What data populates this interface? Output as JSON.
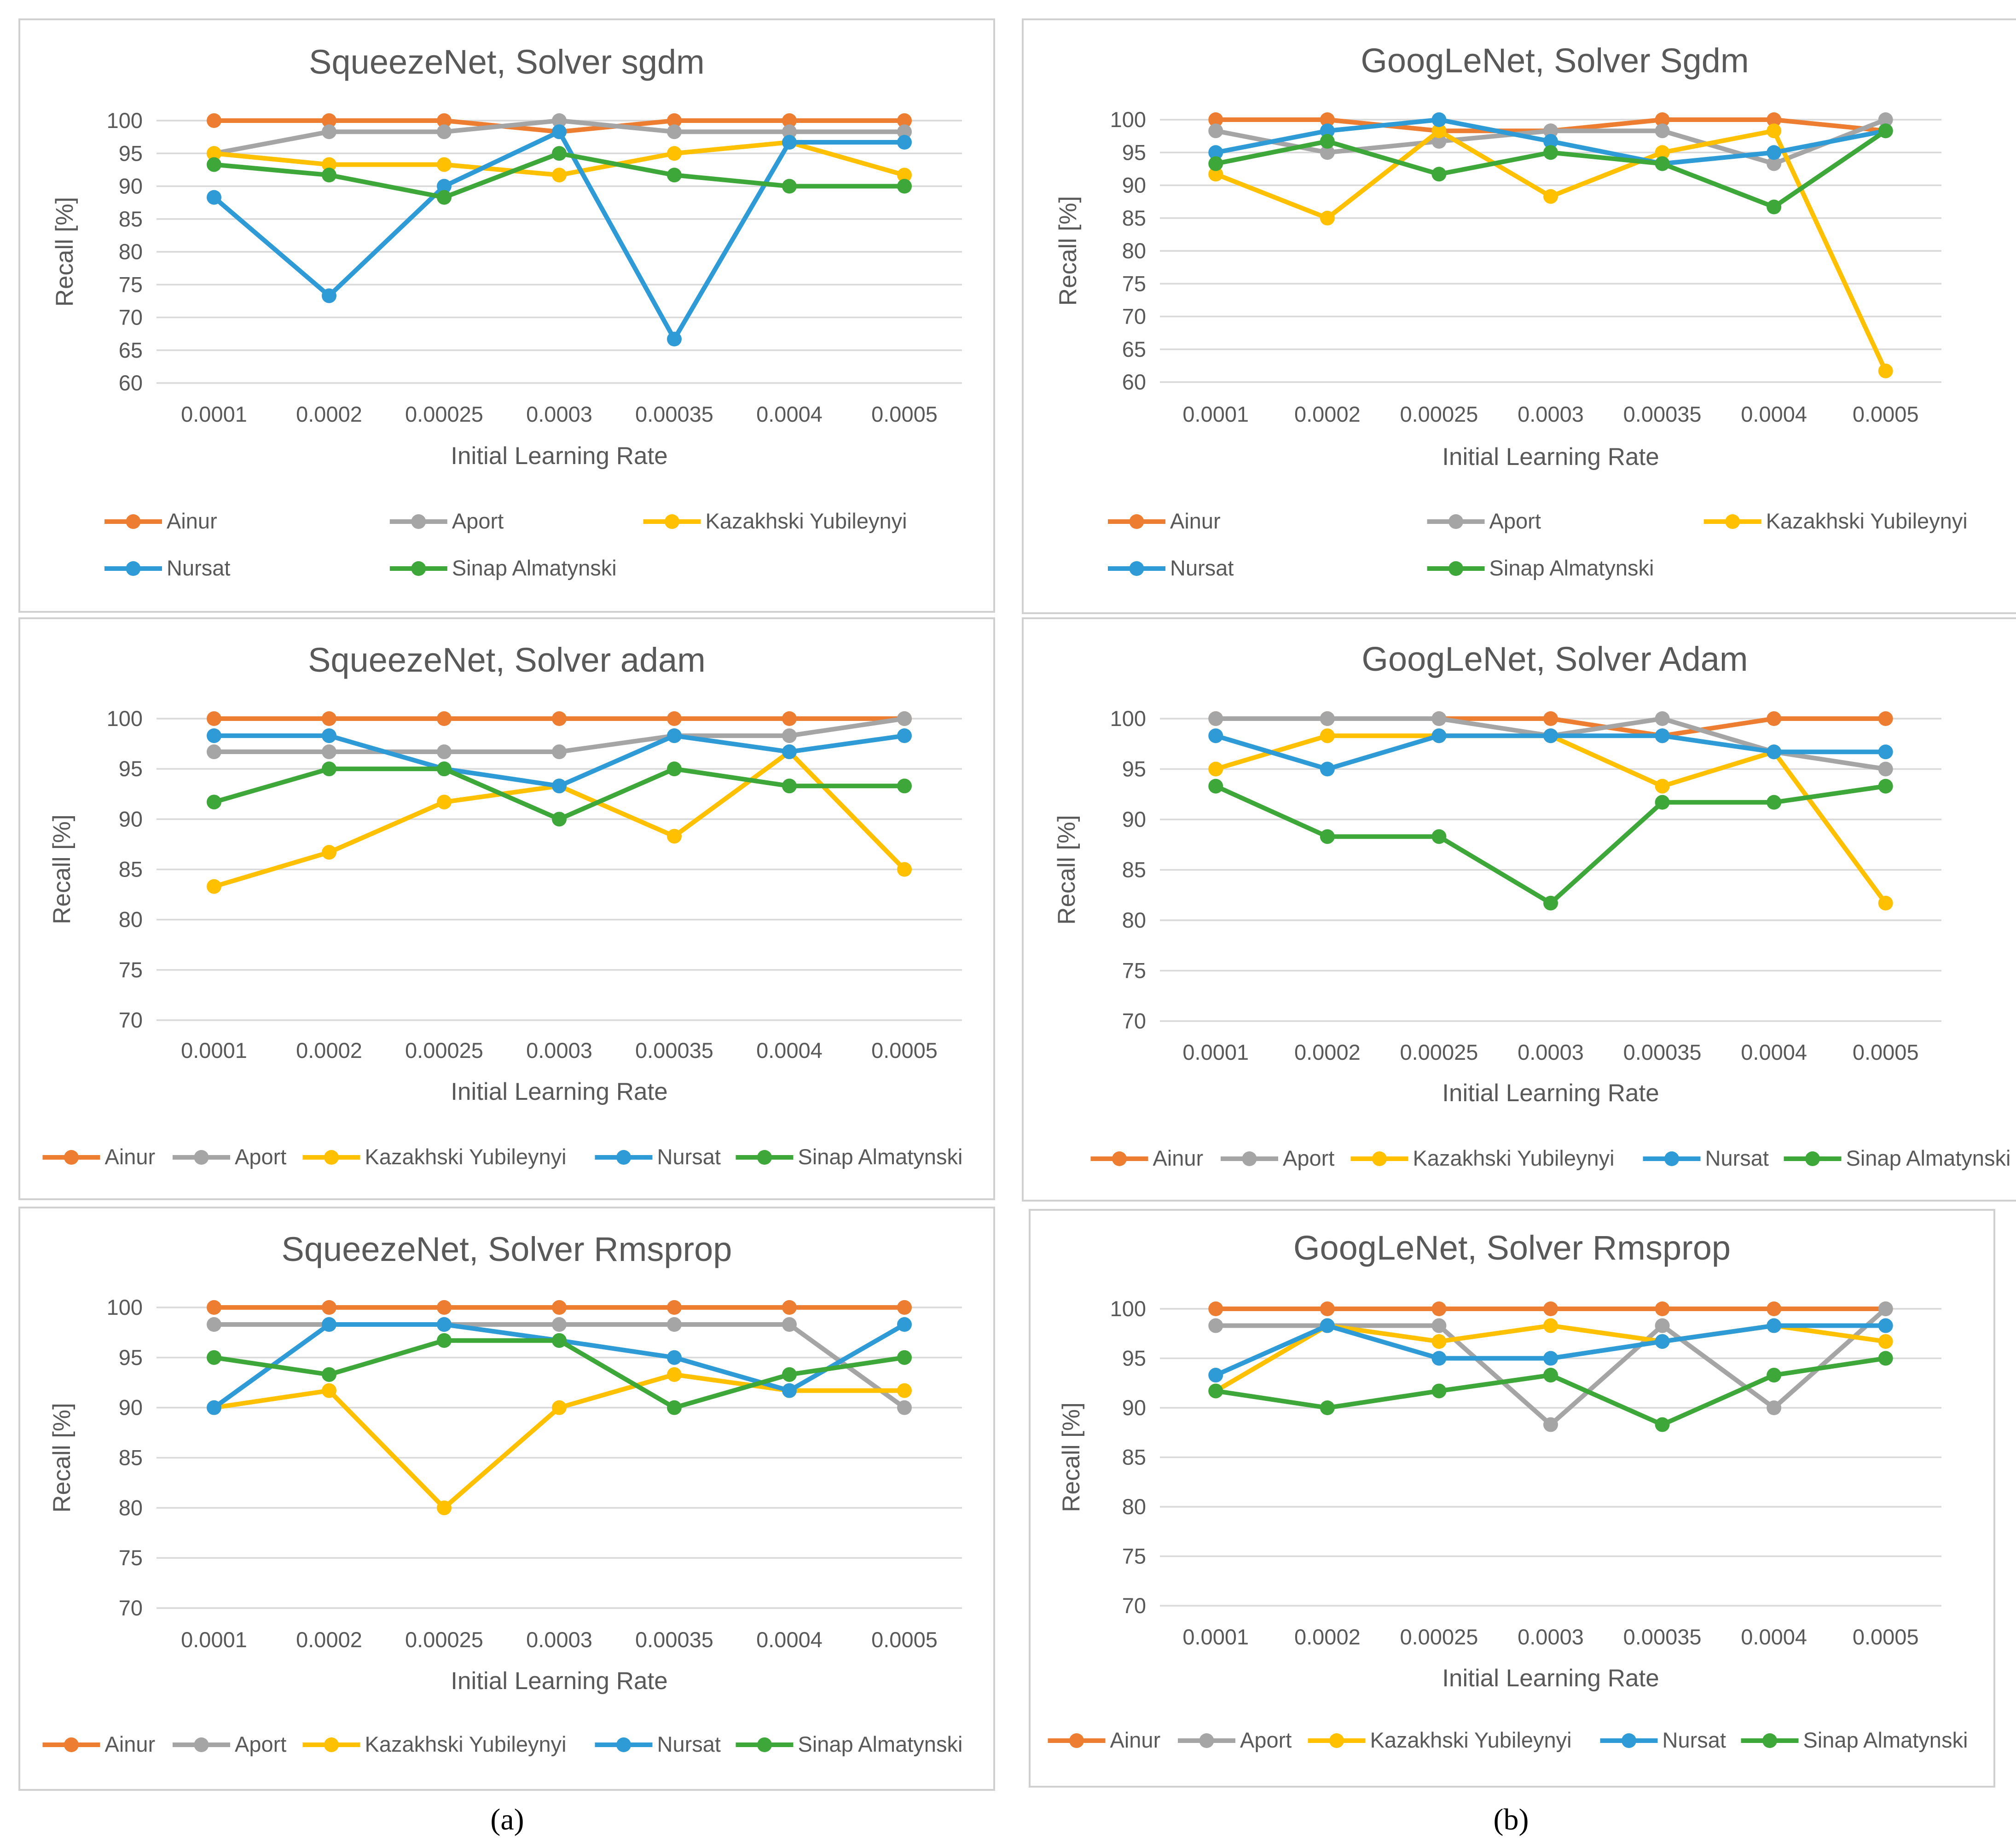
{
  "colors": {
    "Ainur": "#ED7D31",
    "Aport": "#A5A5A5",
    "Kazakhski Yubileynyi": "#FFC000",
    "Nursat": "#2E9BD6",
    "Sinap Almatynski": "#3EA73A"
  },
  "captions": [
    "(a)",
    "(b)"
  ],
  "chart_data": [
    {
      "type": "line",
      "title": "SqueezeNet, Solver sgdm",
      "xlabel": "Initial Learning Rate",
      "ylabel": "Recall [%]",
      "categories": [
        "0.0001",
        "0.0002",
        "0.00025",
        "0.0003",
        "0.00035",
        "0.0004",
        "0.0005"
      ],
      "ylim": [
        60,
        100
      ],
      "ystep": 5,
      "legend": "bottom-two-rows",
      "series": [
        {
          "name": "Ainur",
          "values": [
            100,
            100,
            100,
            98.3,
            100,
            100,
            100
          ]
        },
        {
          "name": "Aport",
          "values": [
            95,
            98.3,
            98.3,
            100,
            98.3,
            98.3,
            98.3
          ]
        },
        {
          "name": "Kazakhski Yubileynyi",
          "values": [
            95,
            93.3,
            93.3,
            91.7,
            95,
            96.7,
            91.7
          ]
        },
        {
          "name": "Nursat",
          "values": [
            88.3,
            73.3,
            90,
            98.3,
            66.7,
            96.7,
            96.7
          ]
        },
        {
          "name": "Sinap Almatynski",
          "values": [
            93.3,
            91.7,
            88.3,
            95,
            91.7,
            90,
            90
          ]
        }
      ]
    },
    {
      "type": "line",
      "title": "GoogLeNet, Solver Sgdm",
      "xlabel": "Initial Learning Rate",
      "ylabel": "Recall [%]",
      "categories": [
        "0.0001",
        "0.0002",
        "0.00025",
        "0.0003",
        "0.00035",
        "0.0004",
        "0.0005"
      ],
      "ylim": [
        60,
        100
      ],
      "ystep": 5,
      "legend": "bottom-two-rows",
      "series": [
        {
          "name": "Ainur",
          "values": [
            100,
            100,
            98.3,
            98.3,
            100,
            100,
            98.3
          ]
        },
        {
          "name": "Aport",
          "values": [
            98.3,
            95,
            96.7,
            98.3,
            98.3,
            93.3,
            100
          ]
        },
        {
          "name": "Kazakhski Yubileynyi",
          "values": [
            91.7,
            85,
            98.3,
            88.3,
            95,
            98.3,
            61.7
          ]
        },
        {
          "name": "Nursat",
          "values": [
            95,
            98.3,
            100,
            96.7,
            93.3,
            95,
            98.3
          ]
        },
        {
          "name": "Sinap Almatynski",
          "values": [
            93.3,
            96.7,
            91.7,
            95,
            93.3,
            86.7,
            98.3
          ]
        }
      ]
    },
    {
      "type": "line",
      "title": "SqueezeNet, Solver adam",
      "xlabel": "Initial Learning Rate",
      "ylabel": "Recall [%]",
      "categories": [
        "0.0001",
        "0.0002",
        "0.00025",
        "0.0003",
        "0.00035",
        "0.0004",
        "0.0005"
      ],
      "ylim": [
        70,
        100
      ],
      "ystep": 5,
      "legend": "bottom",
      "series": [
        {
          "name": "Ainur",
          "values": [
            100,
            100,
            100,
            100,
            100,
            100,
            100
          ]
        },
        {
          "name": "Aport",
          "values": [
            96.7,
            96.7,
            96.7,
            96.7,
            98.3,
            98.3,
            100
          ]
        },
        {
          "name": "Kazakhski Yubileynyi",
          "values": [
            83.3,
            86.7,
            91.7,
            93.3,
            88.3,
            96.7,
            85
          ]
        },
        {
          "name": "Nursat",
          "values": [
            98.3,
            98.3,
            95,
            93.3,
            98.3,
            96.7,
            98.3
          ]
        },
        {
          "name": "Sinap Almatynski",
          "values": [
            91.7,
            95,
            95,
            90,
            95,
            93.3,
            93.3
          ]
        }
      ]
    },
    {
      "type": "line",
      "title": "GoogLeNet, Solver Adam",
      "xlabel": "Initial Learning Rate",
      "ylabel": "Recall [%]",
      "categories": [
        "0.0001",
        "0.0002",
        "0.00025",
        "0.0003",
        "0.00035",
        "0.0004",
        "0.0005"
      ],
      "ylim": [
        70,
        100
      ],
      "ystep": 5,
      "legend": "bottom",
      "series": [
        {
          "name": "Ainur",
          "values": [
            100,
            100,
            100,
            100,
            98.3,
            100,
            100
          ]
        },
        {
          "name": "Aport",
          "values": [
            100,
            100,
            100,
            98.3,
            100,
            96.7,
            95
          ]
        },
        {
          "name": "Kazakhski Yubileynyi",
          "values": [
            95,
            98.3,
            98.3,
            98.3,
            93.3,
            96.7,
            81.7
          ]
        },
        {
          "name": "Nursat",
          "values": [
            98.3,
            95,
            98.3,
            98.3,
            98.3,
            96.7,
            96.7
          ]
        },
        {
          "name": "Sinap Almatynski",
          "values": [
            93.3,
            88.3,
            88.3,
            81.7,
            91.7,
            91.7,
            93.3
          ]
        }
      ]
    },
    {
      "type": "line",
      "title": "SqueezeNet, Solver Rmsprop",
      "xlabel": "Initial Learning Rate",
      "ylabel": "Recall [%]",
      "categories": [
        "0.0001",
        "0.0002",
        "0.00025",
        "0.0003",
        "0.00035",
        "0.0004",
        "0.0005"
      ],
      "ylim": [
        70,
        100
      ],
      "ystep": 5,
      "legend": "bottom",
      "series": [
        {
          "name": "Ainur",
          "values": [
            100,
            100,
            100,
            100,
            100,
            100,
            100
          ]
        },
        {
          "name": "Aport",
          "values": [
            98.3,
            98.3,
            98.3,
            98.3,
            98.3,
            98.3,
            90
          ]
        },
        {
          "name": "Kazakhski Yubileynyi",
          "values": [
            90,
            91.7,
            80,
            90,
            93.3,
            91.7,
            91.7
          ]
        },
        {
          "name": "Nursat",
          "values": [
            90,
            98.3,
            98.3,
            96.7,
            95,
            91.7,
            98.3
          ]
        },
        {
          "name": "Sinap Almatynski",
          "values": [
            95,
            93.3,
            96.7,
            96.7,
            90,
            93.3,
            95
          ]
        }
      ]
    },
    {
      "type": "line",
      "title": "GoogLeNet, Solver Rmsprop",
      "xlabel": "Initial Learning Rate",
      "ylabel": "Recall [%]",
      "categories": [
        "0.0001",
        "0.0002",
        "0.00025",
        "0.0003",
        "0.00035",
        "0.0004",
        "0.0005"
      ],
      "ylim": [
        70,
        100
      ],
      "ystep": 5,
      "legend": "bottom",
      "series": [
        {
          "name": "Ainur",
          "values": [
            100,
            100,
            100,
            100,
            100,
            100,
            100
          ]
        },
        {
          "name": "Aport",
          "values": [
            98.3,
            98.3,
            98.3,
            88.3,
            98.3,
            90,
            100
          ]
        },
        {
          "name": "Kazakhski Yubileynyi",
          "values": [
            91.7,
            98.3,
            96.7,
            98.3,
            96.7,
            98.3,
            96.7
          ]
        },
        {
          "name": "Nursat",
          "values": [
            93.3,
            98.3,
            95,
            95,
            96.7,
            98.3,
            98.3
          ]
        },
        {
          "name": "Sinap Almatynski",
          "values": [
            91.7,
            90,
            91.7,
            93.3,
            88.3,
            93.3,
            95
          ]
        }
      ]
    }
  ]
}
